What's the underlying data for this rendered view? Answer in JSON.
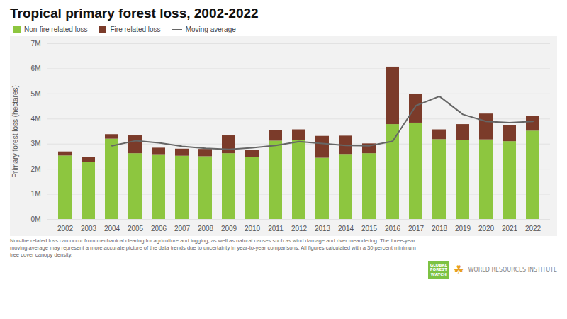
{
  "chart_data": {
    "type": "bar",
    "stacked": true,
    "title": "Tropical primary forest loss, 2002-2022",
    "ylabel": "Primary forest loss (hectares)",
    "categories": [
      "2002",
      "2003",
      "2004",
      "2005",
      "2006",
      "2007",
      "2008",
      "2009",
      "2010",
      "2011",
      "2012",
      "2013",
      "2014",
      "2015",
      "2016",
      "2017",
      "2018",
      "2019",
      "2020",
      "2021",
      "2022"
    ],
    "series": [
      {
        "name": "Non-fire related loss",
        "type": "bar",
        "color": "#8DC63F",
        "values": [
          2530000,
          2280000,
          3200000,
          2620000,
          2580000,
          2520000,
          2500000,
          2620000,
          2480000,
          3120000,
          3150000,
          2440000,
          2590000,
          2620000,
          3780000,
          3840000,
          3180000,
          3160000,
          3170000,
          3100000,
          3520000
        ]
      },
      {
        "name": "Fire related loss",
        "type": "bar",
        "color": "#7B3B2A",
        "values": [
          160000,
          180000,
          180000,
          710000,
          260000,
          280000,
          290000,
          710000,
          270000,
          430000,
          420000,
          870000,
          730000,
          390000,
          2290000,
          1130000,
          390000,
          620000,
          1030000,
          640000,
          600000
        ]
      },
      {
        "name": "Moving average",
        "type": "line",
        "color": "#666666",
        "values": [
          null,
          null,
          2930000,
          3130000,
          3050000,
          2910000,
          2830000,
          2790000,
          2850000,
          2940000,
          3100000,
          3020000,
          2940000,
          2930000,
          3110000,
          4530000,
          4900000,
          4180000,
          3900000,
          3850000,
          3900000
        ]
      }
    ],
    "ylim": [
      0,
      7000000
    ],
    "yticks": [
      {
        "value": 0,
        "label": "0M"
      },
      {
        "value": 1000000,
        "label": "1M"
      },
      {
        "value": 2000000,
        "label": "2M"
      },
      {
        "value": 3000000,
        "label": "3M"
      },
      {
        "value": 4000000,
        "label": "4M"
      },
      {
        "value": 5000000,
        "label": "5M"
      },
      {
        "value": 6000000,
        "label": "6M"
      },
      {
        "value": 7000000,
        "label": "7M"
      }
    ],
    "grid": true,
    "legend": "top",
    "footnote": [
      "Non-fire related loss can occur from mechanical clearing for agriculture and logging, as well as natural causes such as wind damage and river meandering. The three-year",
      "moving average may represent a more accurate picture of the data trends due to uncertainty in year-to-year comparisons. All figures calculated with a 30 percent minimum",
      "tree cover canopy density."
    ],
    "annotations": [
      "GLOBAL\nFOREST\nWATCH",
      "☘",
      "WORLD RESOURCES INSTITUTE"
    ]
  }
}
